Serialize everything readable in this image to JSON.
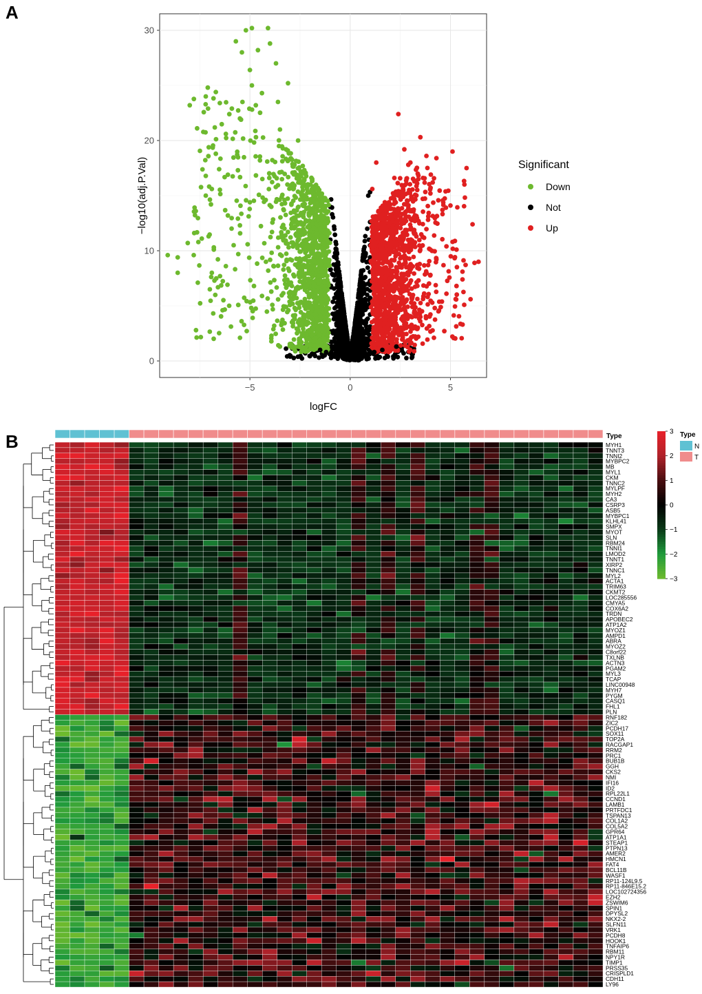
{
  "panel_labels": {
    "a": "A",
    "b": "B"
  },
  "chart_data": [
    {
      "type": "scatter",
      "panel": "A",
      "title": "",
      "xlabel": "logFC",
      "ylabel": "−log10(adj.P.Val)",
      "xlim": [
        -9.5,
        6.8
      ],
      "ylim": [
        -1.5,
        31.5
      ],
      "xticks": [
        -5,
        0,
        5
      ],
      "xtick_labels": [
        "−5",
        "0",
        "5"
      ],
      "yticks": [
        0,
        10,
        20,
        30
      ],
      "ytick_labels": [
        "0",
        "10",
        "20",
        "30"
      ],
      "grid": true,
      "legend": {
        "title": "Significant",
        "position": "right",
        "entries": [
          {
            "label": "Down",
            "color": "#6DB92E"
          },
          {
            "label": "Not",
            "color": "#000000"
          },
          {
            "label": "Up",
            "color": "#E02020"
          }
        ]
      },
      "series": [
        {
          "name": "Down",
          "color": "#6DB92E",
          "points": [
            [
              -5.2,
              30.0
            ],
            [
              -4.9,
              30.2
            ],
            [
              -4.1,
              30.2
            ],
            [
              -5.7,
              29.0
            ],
            [
              -4.6,
              28.2
            ],
            [
              -4.0,
              28.8
            ],
            [
              -5.4,
              28.0
            ],
            [
              -3.7,
              27.0
            ],
            [
              -5.0,
              26.4
            ],
            [
              -3.1,
              25.2
            ],
            [
              -4.9,
              25.0
            ],
            [
              -7.1,
              24.8
            ],
            [
              -6.7,
              24.4
            ],
            [
              -7.2,
              24.0
            ],
            [
              -6.5,
              23.4
            ],
            [
              -8.0,
              23.2
            ],
            [
              -4.4,
              24.3
            ],
            [
              -3.6,
              23.5
            ],
            [
              -5.9,
              22.9
            ],
            [
              -5.5,
              22.0
            ],
            [
              -3.5,
              21.0
            ],
            [
              -6.2,
              20.6
            ],
            [
              -4.7,
              20.3
            ],
            [
              -2.6,
              20.0
            ],
            [
              -3.2,
              19.2
            ],
            [
              -6.7,
              18.8
            ],
            [
              -4.5,
              18.2
            ],
            [
              -5.6,
              17.3
            ],
            [
              -6.1,
              16.9
            ],
            [
              -6.9,
              15.6
            ],
            [
              -7.2,
              15.0
            ],
            [
              -5.0,
              14.4
            ],
            [
              -7.7,
              13.6
            ],
            [
              -6.1,
              13.2
            ],
            [
              -2.8,
              13.0
            ],
            [
              -5.5,
              12.3
            ],
            [
              -3.9,
              11.7
            ],
            [
              -7.4,
              11.1
            ],
            [
              -8.1,
              10.7
            ],
            [
              -6.8,
              10.3
            ],
            [
              -7.8,
              9.6
            ],
            [
              -8.6,
              9.4
            ],
            [
              -9.1,
              9.6
            ],
            [
              -4.2,
              9.0
            ],
            [
              -6.2,
              8.6
            ],
            [
              -8.6,
              8.0
            ],
            [
              -6.9,
              8.0
            ],
            [
              -7.6,
              7.1
            ],
            [
              -4.8,
              6.8
            ],
            [
              -7.0,
              6.5
            ],
            [
              -2.7,
              6.6
            ],
            [
              -3.2,
              4.9
            ],
            [
              -2.6,
              3.5
            ],
            [
              -1.6,
              3.0
            ],
            [
              -2.2,
              2.4
            ],
            [
              -1.3,
              2.0
            ]
          ]
        },
        {
          "name": "Not",
          "color": "#000000",
          "points": [
            [
              -0.9,
              13.3
            ],
            [
              -0.7,
              10.6
            ],
            [
              -0.6,
              8.4
            ],
            [
              -0.55,
              6.3
            ],
            [
              -0.45,
              4.5
            ],
            [
              -0.35,
              3.0
            ],
            [
              -0.2,
              1.6
            ],
            [
              -0.1,
              0.9
            ],
            [
              0.0,
              0.3
            ],
            [
              0.15,
              1.2
            ],
            [
              0.3,
              2.8
            ],
            [
              0.45,
              4.5
            ],
            [
              0.6,
              6.8
            ],
            [
              0.75,
              9.5
            ],
            [
              0.85,
              12.0
            ],
            [
              0.9,
              15.0
            ],
            [
              -1.5,
              1.0
            ],
            [
              -1.2,
              0.8
            ],
            [
              1.2,
              0.8
            ],
            [
              1.6,
              1.0
            ],
            [
              2.3,
              1.3
            ]
          ]
        },
        {
          "name": "Up",
          "color": "#E02020",
          "points": [
            [
              2.4,
              22.4
            ],
            [
              3.5,
              20.3
            ],
            [
              2.7,
              19.2
            ],
            [
              5.1,
              19.0
            ],
            [
              3.8,
              18.6
            ],
            [
              4.3,
              18.4
            ],
            [
              3.0,
              18.0
            ],
            [
              2.9,
              17.8
            ],
            [
              1.3,
              18.0
            ],
            [
              5.8,
              17.5
            ],
            [
              2.2,
              16.6
            ],
            [
              3.2,
              16.3
            ],
            [
              1.1,
              15.6
            ],
            [
              4.0,
              15.2
            ],
            [
              2.0,
              14.2
            ],
            [
              5.0,
              14.1
            ],
            [
              4.6,
              13.7
            ],
            [
              6.1,
              12.4
            ],
            [
              1.8,
              12.1
            ],
            [
              3.3,
              11.3
            ],
            [
              2.6,
              10.9
            ],
            [
              4.8,
              10.4
            ],
            [
              5.3,
              10.1
            ],
            [
              6.4,
              9.0
            ],
            [
              6.2,
              8.9
            ],
            [
              4.3,
              9.2
            ],
            [
              2.8,
              8.5
            ],
            [
              5.6,
              8.1
            ],
            [
              4.0,
              7.8
            ],
            [
              5.6,
              7.4
            ],
            [
              5.3,
              6.8
            ],
            [
              4.8,
              6.1
            ],
            [
              6.0,
              5.6
            ],
            [
              4.4,
              4.5
            ],
            [
              3.5,
              4.0
            ],
            [
              2.7,
              3.3
            ],
            [
              2.0,
              2.3
            ],
            [
              1.6,
              1.9
            ]
          ]
        }
      ]
    },
    {
      "type": "heatmap",
      "panel": "B",
      "annotation_label": "Type",
      "color_scale": {
        "min": -3,
        "max": 3,
        "ticks": [
          3,
          2,
          1,
          0,
          -1,
          -2,
          -3
        ],
        "colors": [
          "#6DBA2E",
          "#1F9A3C",
          "#0A3A18",
          "#000000",
          "#4A0E10",
          "#B0222A",
          "#E8212A"
        ]
      },
      "columns": {
        "count": 37,
        "types": [
          "N",
          "N",
          "N",
          "N",
          "N",
          "T",
          "T",
          "T",
          "T",
          "T",
          "T",
          "T",
          "T",
          "T",
          "T",
          "T",
          "T",
          "T",
          "T",
          "T",
          "T",
          "T",
          "T",
          "T",
          "T",
          "T",
          "T",
          "T",
          "T",
          "T",
          "T",
          "T",
          "T",
          "T",
          "T",
          "T",
          "T"
        ],
        "type_colors": {
          "N": "#5FC1D3",
          "T": "#F08C8C"
        }
      },
      "type_legend": {
        "title": "Type",
        "entries": [
          {
            "label": "N",
            "color": "#5FC1D3"
          },
          {
            "label": "T",
            "color": "#F08C8C"
          }
        ]
      },
      "rows_up_in_normal": [
        "MYH1",
        "TNNT3",
        "TNNI2",
        "MYBPC2",
        "MB",
        "MYL1",
        "CKM",
        "TNNC2",
        "MYLPF",
        "MYH2",
        "CA3",
        "CSRP3",
        "ASB5",
        "MYBPC1",
        "KLHL41",
        "SMPX",
        "MYOT",
        "SLN",
        "RBM24",
        "TNNI1",
        "LMOD2",
        "TNNT1",
        "XIRP2",
        "TNNC1",
        "MYL2",
        "ACTA1",
        "TRIM63",
        "CKMT2",
        "LOC285556",
        "CMYA5",
        "COX6A2",
        "TRDN",
        "APOBEC2",
        "ATP1A2",
        "MYOZ1",
        "AMPD1",
        "ABRA",
        "MYOZ2",
        "C8orf22",
        "TXLNB",
        "ACTN3",
        "PGAM2",
        "MYL3",
        "TCAP",
        "LINC00948",
        "MYH7",
        "PYGM",
        "CASQ1",
        "FHL1",
        "PLN"
      ],
      "rows_up_in_tumor": [
        "RNF182",
        "ZIC2",
        "PCDH17",
        "SOX11",
        "TOP2A",
        "RACGAP1",
        "RRM2",
        "PRC1",
        "BUB1B",
        "GGH",
        "CKS2",
        "NMI",
        "IFI16",
        "ID2",
        "RPL22L1",
        "CCND1",
        "LAMB1",
        "PRTFDC1",
        "TSPAN13",
        "COL1A2",
        "COL5A2",
        "GPR64",
        "ATP1A1",
        "STEAP1",
        "PTPN13",
        "AMER2",
        "HMCN1",
        "FAT4",
        "BCL11B",
        "WASF1",
        "RP11-124L9.5",
        "RP11-846E15.2",
        "LOC102724356",
        "EZH2",
        "ZSWIM6",
        "SPIN1",
        "DPYSL2",
        "NKX2-2",
        "SLFN11",
        "VRK1",
        "PCDH8",
        "HOOK1",
        "TNFAIP6",
        "RBM11",
        "NPY1R",
        "TIMP1",
        "PRSS35",
        "CRISPLD1",
        "CDH11",
        "LY96"
      ],
      "value_summary": "Normal samples (N): first 50 genes high (about +2 to +3), last 50 genes low (about -2 to -3). Tumor samples (T): first 50 genes mostly around -1 to 0 with a few reddish columns; last 50 genes mixed around 0 to +2."
    }
  ]
}
